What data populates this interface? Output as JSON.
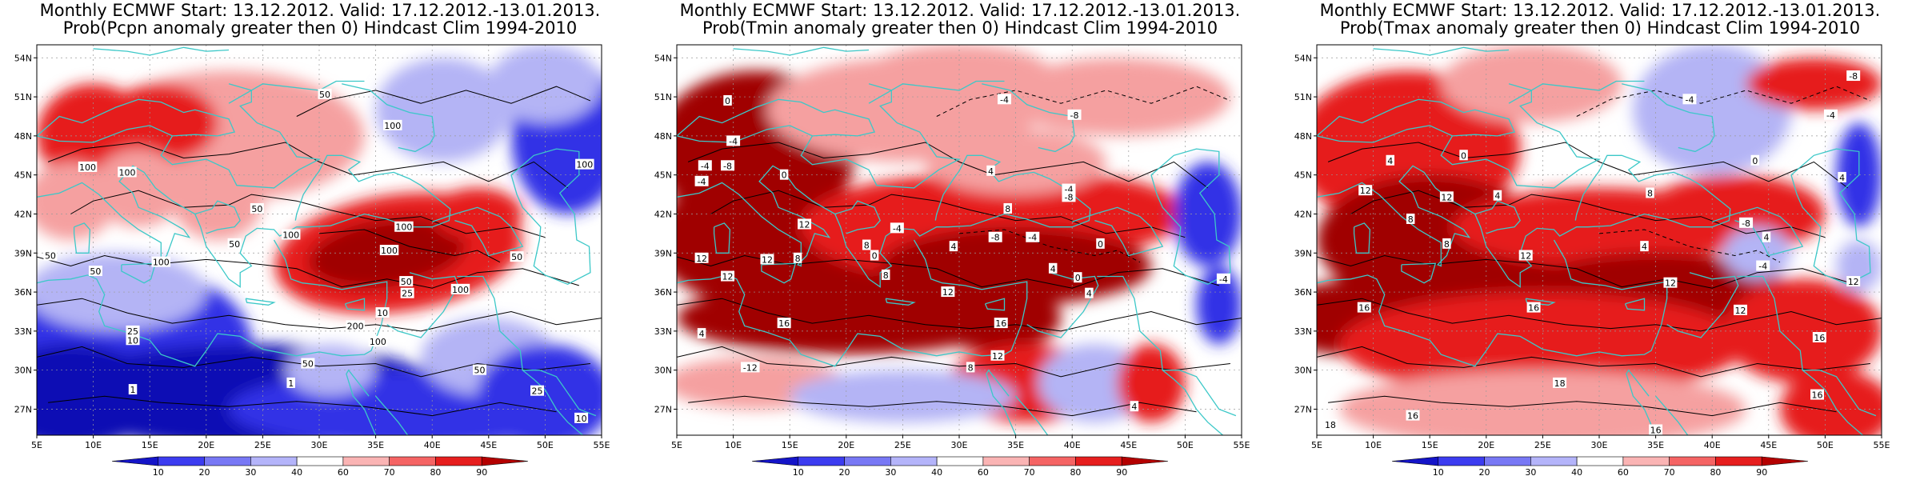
{
  "panels": [
    {
      "id": "pcpn",
      "title_line1": "Monthly ECMWF Start: 13.12.2012. Valid: 17.12.2012.-13.01.2013.",
      "title_line2": "Prob(Pcpn anomaly greater then 0) Hindcast Clim 1994-2010",
      "contour_labels": [
        {
          "text": "50",
          "lon": 30.5,
          "lat": 51.2
        },
        {
          "text": "100",
          "lon": 36.5,
          "lat": 48.8
        },
        {
          "text": "100",
          "lon": 9.5,
          "lat": 45.6
        },
        {
          "text": "100",
          "lon": 13,
          "lat": 45.2
        },
        {
          "text": "50",
          "lon": 24.5,
          "lat": 42.4
        },
        {
          "text": "100",
          "lon": 27.5,
          "lat": 40.4
        },
        {
          "text": "100",
          "lon": 37.5,
          "lat": 41.0
        },
        {
          "text": "100",
          "lon": 36.2,
          "lat": 39.2
        },
        {
          "text": "50",
          "lon": 47.5,
          "lat": 38.7
        },
        {
          "text": "50",
          "lon": 37.7,
          "lat": 36.8
        },
        {
          "text": "25",
          "lon": 37.8,
          "lat": 35.9
        },
        {
          "text": "100",
          "lon": 42.5,
          "lat": 36.2
        },
        {
          "text": "200",
          "lon": 33.2,
          "lat": 33.4
        },
        {
          "text": "100",
          "lon": 35.2,
          "lat": 32.2
        },
        {
          "text": "10",
          "lon": 35.6,
          "lat": 34.4
        },
        {
          "text": "50",
          "lon": 29,
          "lat": 30.5
        },
        {
          "text": "1",
          "lon": 27.5,
          "lat": 29.0
        },
        {
          "text": "1",
          "lon": 13.5,
          "lat": 28.5
        },
        {
          "text": "25",
          "lon": 13.5,
          "lat": 33.0
        },
        {
          "text": "10",
          "lon": 13.5,
          "lat": 32.3
        },
        {
          "text": "50",
          "lon": 10.2,
          "lat": 37.6
        },
        {
          "text": "100",
          "lon": 16,
          "lat": 38.3
        },
        {
          "text": "50",
          "lon": 44.2,
          "lat": 30.0
        },
        {
          "text": "25",
          "lon": 49.3,
          "lat": 28.4
        },
        {
          "text": "10",
          "lon": 53.2,
          "lat": 26.3
        },
        {
          "text": "50",
          "lon": 6.2,
          "lat": 38.8
        },
        {
          "text": "50",
          "lon": 22.5,
          "lat": 39.7
        },
        {
          "text": "100",
          "lon": 53.5,
          "lat": 45.8
        }
      ]
    },
    {
      "id": "tmin",
      "title_line1": "Monthly ECMWF Start: 13.12.2012. Valid: 17.12.2012.-13.01.2013.",
      "title_line2": "Prob(Tmin anomaly greater then 0) Hindcast Clim 1994-2010",
      "contour_labels": [
        {
          "text": "0",
          "lon": 9.5,
          "lat": 50.7
        },
        {
          "text": "-4",
          "lon": 34,
          "lat": 50.8
        },
        {
          "text": "-8",
          "lon": 40.2,
          "lat": 49.6
        },
        {
          "text": "-4",
          "lon": 10,
          "lat": 47.6
        },
        {
          "text": "-4",
          "lon": 7.5,
          "lat": 45.7
        },
        {
          "text": "-8",
          "lon": 9.5,
          "lat": 45.7
        },
        {
          "text": "0",
          "lon": 14.5,
          "lat": 45.0
        },
        {
          "text": "-4",
          "lon": 7.2,
          "lat": 44.5
        },
        {
          "text": "4",
          "lon": 32.8,
          "lat": 45.3
        },
        {
          "text": "-4",
          "lon": 39.7,
          "lat": 43.9
        },
        {
          "text": "-8",
          "lon": 39.7,
          "lat": 43.3
        },
        {
          "text": "8",
          "lon": 34.3,
          "lat": 42.4
        },
        {
          "text": "12",
          "lon": 16.3,
          "lat": 41.2
        },
        {
          "text": "-4",
          "lon": 24.5,
          "lat": 40.9
        },
        {
          "text": "-8",
          "lon": 33.2,
          "lat": 40.2
        },
        {
          "text": "-4",
          "lon": 36.5,
          "lat": 40.2
        },
        {
          "text": "0",
          "lon": 42.5,
          "lat": 39.7
        },
        {
          "text": "8",
          "lon": 21.8,
          "lat": 39.6
        },
        {
          "text": "12",
          "lon": 7.2,
          "lat": 38.6
        },
        {
          "text": "12",
          "lon": 13,
          "lat": 38.5
        },
        {
          "text": "8",
          "lon": 15.7,
          "lat": 38.6
        },
        {
          "text": "0",
          "lon": 22.5,
          "lat": 38.8
        },
        {
          "text": "4",
          "lon": 29.5,
          "lat": 39.5
        },
        {
          "text": "12",
          "lon": 9.5,
          "lat": 37.2
        },
        {
          "text": "8",
          "lon": 23.5,
          "lat": 37.3
        },
        {
          "text": "12",
          "lon": 29,
          "lat": 36.0
        },
        {
          "text": "4",
          "lon": 38.3,
          "lat": 37.8
        },
        {
          "text": "0",
          "lon": 40.5,
          "lat": 37.1
        },
        {
          "text": "4",
          "lon": 41.5,
          "lat": 35.9
        },
        {
          "text": "16",
          "lon": 14.5,
          "lat": 33.6
        },
        {
          "text": "16",
          "lon": 33.7,
          "lat": 33.6
        },
        {
          "text": "4",
          "lon": 7.2,
          "lat": 32.8
        },
        {
          "text": "-12",
          "lon": 11.5,
          "lat": 30.2
        },
        {
          "text": "8",
          "lon": 31,
          "lat": 30.2
        },
        {
          "text": "12",
          "lon": 33.4,
          "lat": 31.1
        },
        {
          "text": "4",
          "lon": 45.5,
          "lat": 27.2
        },
        {
          "text": "-4",
          "lon": 53.4,
          "lat": 37.0
        }
      ]
    },
    {
      "id": "tmax",
      "title_line1": "Monthly ECMWF Start: 13.12.2012. Valid: 17.12.2012.-13.01.2013.",
      "title_line2": "Prob(Tmax anomaly greater then 0) Hindcast Clim 1994-2010",
      "contour_labels": [
        {
          "text": "-8",
          "lon": 52.5,
          "lat": 52.6
        },
        {
          "text": "-4",
          "lon": 38,
          "lat": 50.8
        },
        {
          "text": "-4",
          "lon": 50.5,
          "lat": 49.6
        },
        {
          "text": "0",
          "lon": 18,
          "lat": 46.5
        },
        {
          "text": "4",
          "lon": 11.5,
          "lat": 46.1
        },
        {
          "text": "0",
          "lon": 43.8,
          "lat": 46.1
        },
        {
          "text": "4",
          "lon": 51.5,
          "lat": 44.8
        },
        {
          "text": "12",
          "lon": 9.3,
          "lat": 43.8
        },
        {
          "text": "12",
          "lon": 16.5,
          "lat": 43.3
        },
        {
          "text": "8",
          "lon": 34.5,
          "lat": 43.6
        },
        {
          "text": "4",
          "lon": 21,
          "lat": 43.4
        },
        {
          "text": "8",
          "lon": 13.3,
          "lat": 41.6
        },
        {
          "text": "4",
          "lon": 44.8,
          "lat": 40.2
        },
        {
          "text": "-8",
          "lon": 43,
          "lat": 41.3
        },
        {
          "text": "8",
          "lon": 16.5,
          "lat": 39.7
        },
        {
          "text": "12",
          "lon": 23.5,
          "lat": 38.8
        },
        {
          "text": "4",
          "lon": 34,
          "lat": 39.5
        },
        {
          "text": "-4",
          "lon": 44.5,
          "lat": 38.0
        },
        {
          "text": "16",
          "lon": 9.2,
          "lat": 34.8
        },
        {
          "text": "16",
          "lon": 24.2,
          "lat": 34.8
        },
        {
          "text": "12",
          "lon": 36.3,
          "lat": 36.7
        },
        {
          "text": "12",
          "lon": 52.5,
          "lat": 36.8
        },
        {
          "text": "12",
          "lon": 42.5,
          "lat": 34.6
        },
        {
          "text": "16",
          "lon": 49.5,
          "lat": 32.5
        },
        {
          "text": "18",
          "lon": 26.5,
          "lat": 29.0
        },
        {
          "text": "16",
          "lon": 13.5,
          "lat": 26.5
        },
        {
          "text": "18",
          "lon": 6.2,
          "lat": 25.8
        },
        {
          "text": "16",
          "lon": 49.3,
          "lat": 28.1
        },
        {
          "text": "16",
          "lon": 35,
          "lat": 25.4
        }
      ]
    }
  ],
  "axes": {
    "lon_ticks": [
      "5E",
      "10E",
      "15E",
      "20E",
      "25E",
      "30E",
      "35E",
      "40E",
      "45E",
      "50E",
      "55E"
    ],
    "lat_ticks": [
      "27N",
      "30N",
      "33N",
      "36N",
      "39N",
      "42N",
      "45N",
      "48N",
      "51N",
      "54N"
    ]
  },
  "colorbar": {
    "labels": [
      "10",
      "20",
      "30",
      "40",
      "60",
      "70",
      "80",
      "90"
    ],
    "colors": [
      "#1414c8",
      "#3c3cf0",
      "#7878f5",
      "#b4b4fa",
      "#ffffff",
      "#fab4b4",
      "#f56464",
      "#e61e1e",
      "#b40000"
    ]
  },
  "colors": {
    "coast": "#3cc8c8",
    "contour": "#000000",
    "deep_red": "#a00000",
    "red": "#e61e1e",
    "light_red": "#f5a0a0",
    "deep_blue": "#0a0ab4",
    "blue": "#3232e6",
    "light_blue": "#b4b4f5"
  },
  "chart_data": {
    "type": "heatmap",
    "grid": "on",
    "xlim": [
      5,
      55
    ],
    "ylim": [
      25,
      55
    ],
    "xlabels": [
      "5E",
      "10E",
      "15E",
      "20E",
      "25E",
      "30E",
      "35E",
      "40E",
      "45E",
      "50E",
      "55E"
    ],
    "ylabels": [
      "27N",
      "30N",
      "33N",
      "36N",
      "39N",
      "42N",
      "45N",
      "48N",
      "51N",
      "54N"
    ],
    "colorbar_levels": [
      10,
      20,
      30,
      40,
      60,
      70,
      80,
      90
    ]
  }
}
